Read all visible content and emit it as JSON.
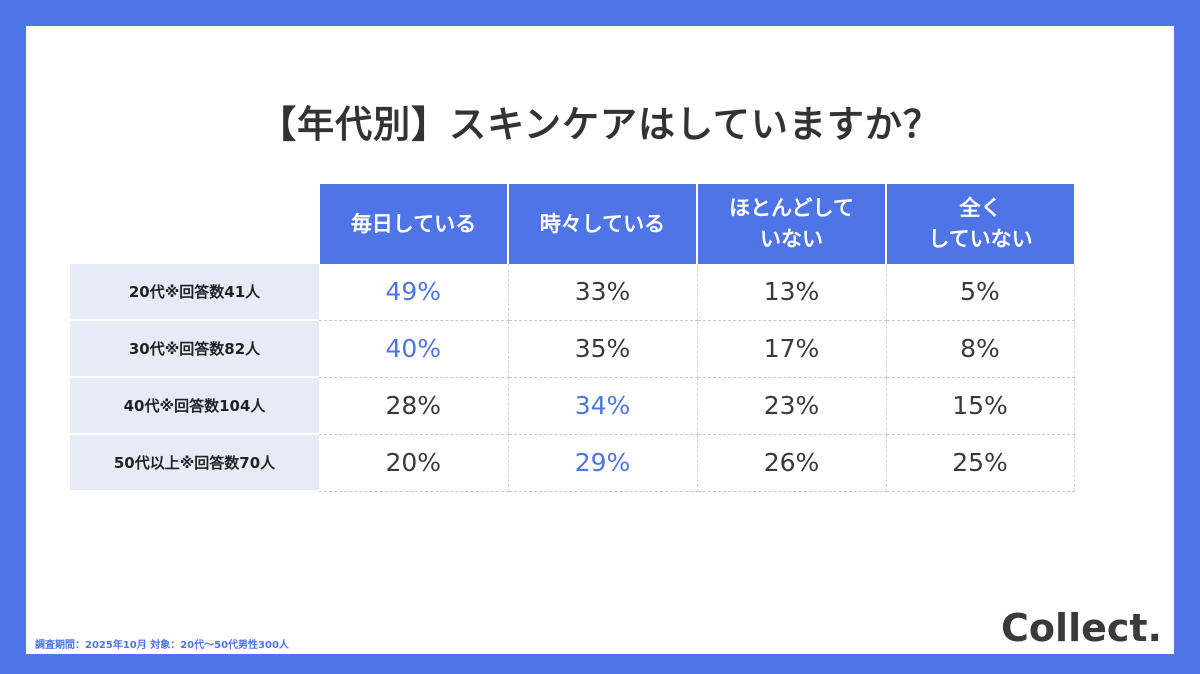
{
  "title": "【年代別】スキンケアはしていますか？",
  "chart_data": {
    "type": "table",
    "columns": [
      "毎日している",
      "時々している",
      "ほとんどして\nいない",
      "全く\nしていない"
    ],
    "rows": [
      {
        "label": "20代※回答数41人",
        "values": [
          "49%",
          "33%",
          "13%",
          "5%"
        ],
        "highlight": 0
      },
      {
        "label": "30代※回答数82人",
        "values": [
          "40%",
          "35%",
          "17%",
          "8%"
        ],
        "highlight": 0
      },
      {
        "label": "40代※回答数104人",
        "values": [
          "28%",
          "34%",
          "23%",
          "15%"
        ],
        "highlight": 1
      },
      {
        "label": "50代以上※回答数70人",
        "values": [
          "20%",
          "29%",
          "26%",
          "25%"
        ],
        "highlight": 1
      }
    ]
  },
  "footnote": "調査期間：2025年10月 対象：20代～50代男性300人",
  "logo": "Collect.",
  "colors": {
    "accent": "#4f74e6",
    "rowhead_bg": "#e6ebf8"
  }
}
